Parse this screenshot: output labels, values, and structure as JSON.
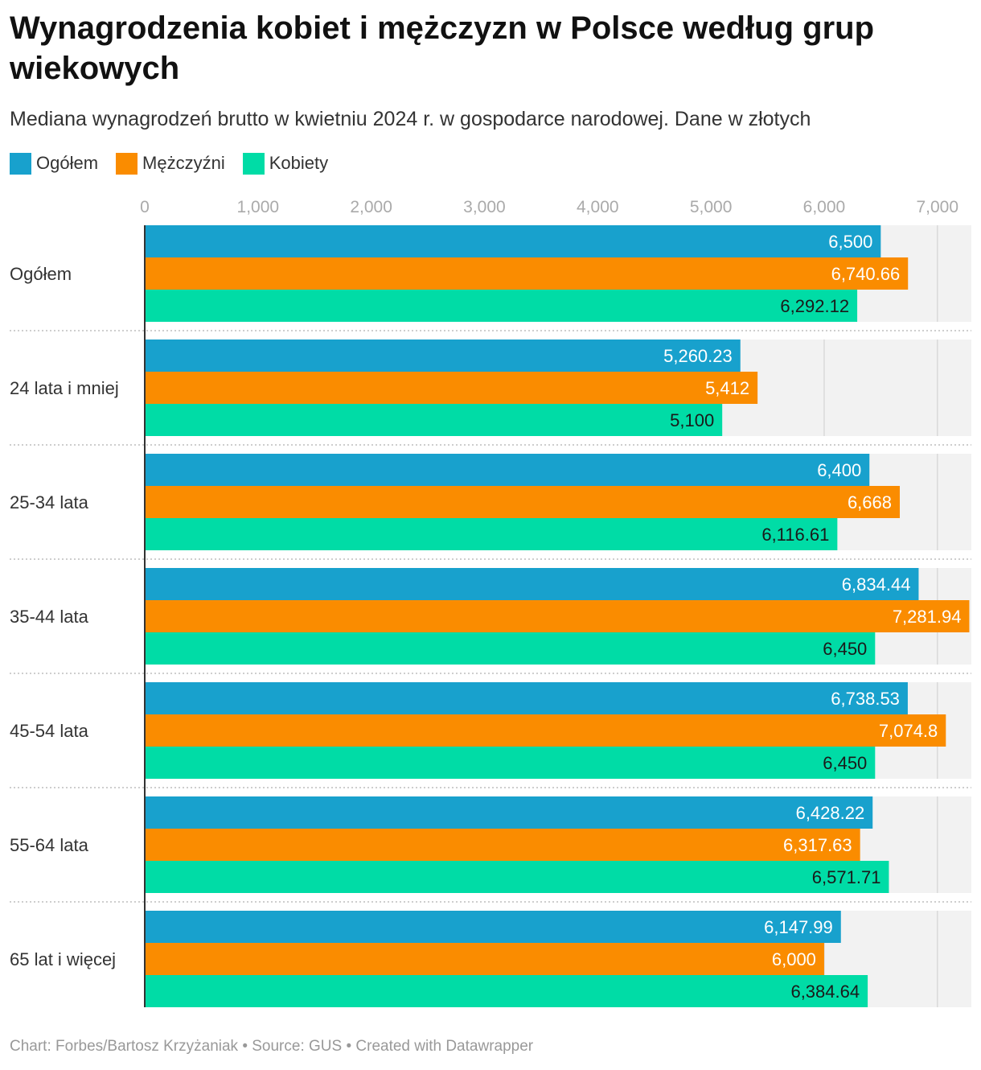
{
  "chart_data": {
    "type": "bar",
    "orientation": "horizontal",
    "title": "Wynagrodzenia kobiet i mężczyzn w Polsce według grup wiekowych",
    "subtitle": "Mediana wynagrodzeń brutto w kwietniu 2024 r. w gospodarce narodowej. Dane w złotych",
    "categories": [
      "Ogółem",
      "24 lata i mniej",
      "25-34 lata",
      "35-44 lata",
      "45-54 lata",
      "55-64 lata",
      "65 lat i więcej"
    ],
    "series": [
      {
        "name": "Ogółem",
        "color": "#18a1cd",
        "label_color": "#ffffff",
        "values": [
          6500,
          5260.23,
          6400,
          6834.44,
          6738.53,
          6428.22,
          6147.99
        ],
        "labels": [
          "6,500",
          "5,260.23",
          "6,400",
          "6,834.44",
          "6,738.53",
          "6,428.22",
          "6,147.99"
        ]
      },
      {
        "name": "Mężczyźni",
        "color": "#fa8c00",
        "label_color": "#ffffff",
        "values": [
          6740.66,
          5412,
          6668,
          7281.94,
          7074.8,
          6317.63,
          6000
        ],
        "labels": [
          "6,740.66",
          "5,412",
          "6,668",
          "7,281.94",
          "7,074.8",
          "6,317.63",
          "6,000"
        ]
      },
      {
        "name": "Kobiety",
        "color": "#00dca6",
        "label_color": "#1a1a1a",
        "values": [
          6292.12,
          5100,
          6116.61,
          6450,
          6450,
          6571.71,
          6384.64
        ],
        "labels": [
          "6,292.12",
          "5,100",
          "6,116.61",
          "6,450",
          "6,450",
          "6,571.71",
          "6,384.64"
        ]
      }
    ],
    "xlim": [
      0,
      7300
    ],
    "x_ticks": [
      0,
      1000,
      2000,
      3000,
      4000,
      5000,
      6000,
      7000
    ],
    "x_tick_labels": [
      "0",
      "1,000",
      "2,000",
      "3,000",
      "4,000",
      "5,000",
      "6,000",
      "7,000"
    ],
    "legend_position": "top-left",
    "grid": true
  },
  "footer": {
    "source": "Chart: Forbes/Bartosz Krzyżaniak • Source: GUS • Created with Datawrapper"
  }
}
